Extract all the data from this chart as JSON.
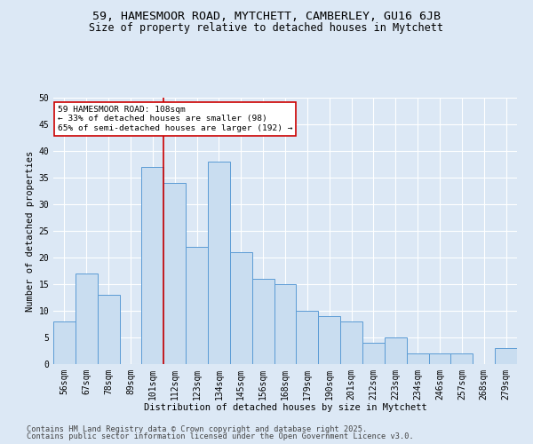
{
  "title1": "59, HAMESMOOR ROAD, MYTCHETT, CAMBERLEY, GU16 6JB",
  "title2": "Size of property relative to detached houses in Mytchett",
  "xlabel": "Distribution of detached houses by size in Mytchett",
  "ylabel": "Number of detached properties",
  "categories": [
    "56sqm",
    "67sqm",
    "78sqm",
    "89sqm",
    "101sqm",
    "112sqm",
    "123sqm",
    "134sqm",
    "145sqm",
    "156sqm",
    "168sqm",
    "179sqm",
    "190sqm",
    "201sqm",
    "212sqm",
    "223sqm",
    "234sqm",
    "246sqm",
    "257sqm",
    "268sqm",
    "279sqm"
  ],
  "values": [
    8,
    17,
    13,
    0,
    37,
    34,
    22,
    38,
    21,
    16,
    15,
    10,
    9,
    8,
    4,
    5,
    2,
    2,
    2,
    0,
    3
  ],
  "bar_color": "#c9ddf0",
  "bar_edge_color": "#5b9bd5",
  "annotation_line1": "59 HAMESMOOR ROAD: 108sqm",
  "annotation_line2": "← 33% of detached houses are smaller (98)",
  "annotation_line3": "65% of semi-detached houses are larger (192) →",
  "annotation_box_color": "#ffffff",
  "annotation_box_edge": "#cc0000",
  "vline_color": "#cc0000",
  "footer1": "Contains HM Land Registry data © Crown copyright and database right 2025.",
  "footer2": "Contains public sector information licensed under the Open Government Licence v3.0.",
  "bg_color": "#dce8f5",
  "plot_bg_color": "#dce8f5",
  "ylim": [
    0,
    50
  ],
  "yticks": [
    0,
    5,
    10,
    15,
    20,
    25,
    30,
    35,
    40,
    45,
    50
  ],
  "grid_color": "#ffffff",
  "title1_fontsize": 9.5,
  "title2_fontsize": 8.5,
  "axis_label_fontsize": 7.5,
  "tick_fontsize": 7,
  "footer_fontsize": 6.2
}
